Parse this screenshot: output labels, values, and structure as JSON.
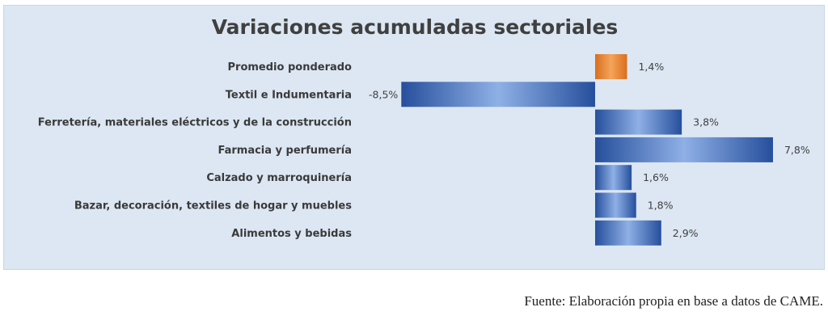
{
  "chart_data": {
    "type": "bar",
    "orientation": "horizontal",
    "title": "Variaciones acumuladas sectoriales",
    "categories": [
      "Promedio ponderado",
      "Textil e Indumentaria",
      "Ferretería, materiales eléctricos y  de la construcción",
      "Farmacia y perfumería",
      "Calzado y marroquinería",
      "Bazar, decoración, textiles de hogar y muebles",
      "Alimentos y bebidas"
    ],
    "values": [
      1.4,
      -8.5,
      3.8,
      7.8,
      1.6,
      1.8,
      2.9
    ],
    "value_labels": [
      "1,4%",
      "-8,5%",
      "3,8%",
      "7,8%",
      "1,6%",
      "1,8%",
      "2,9%"
    ],
    "highlight_index": 0,
    "colors": {
      "bar": "#2f5fb3",
      "highlight": "#e67e22",
      "panel": "#dce7f3"
    },
    "grid": false,
    "legend": "none"
  },
  "source": "Fuente: Elaboración propia en base a datos de CAME."
}
